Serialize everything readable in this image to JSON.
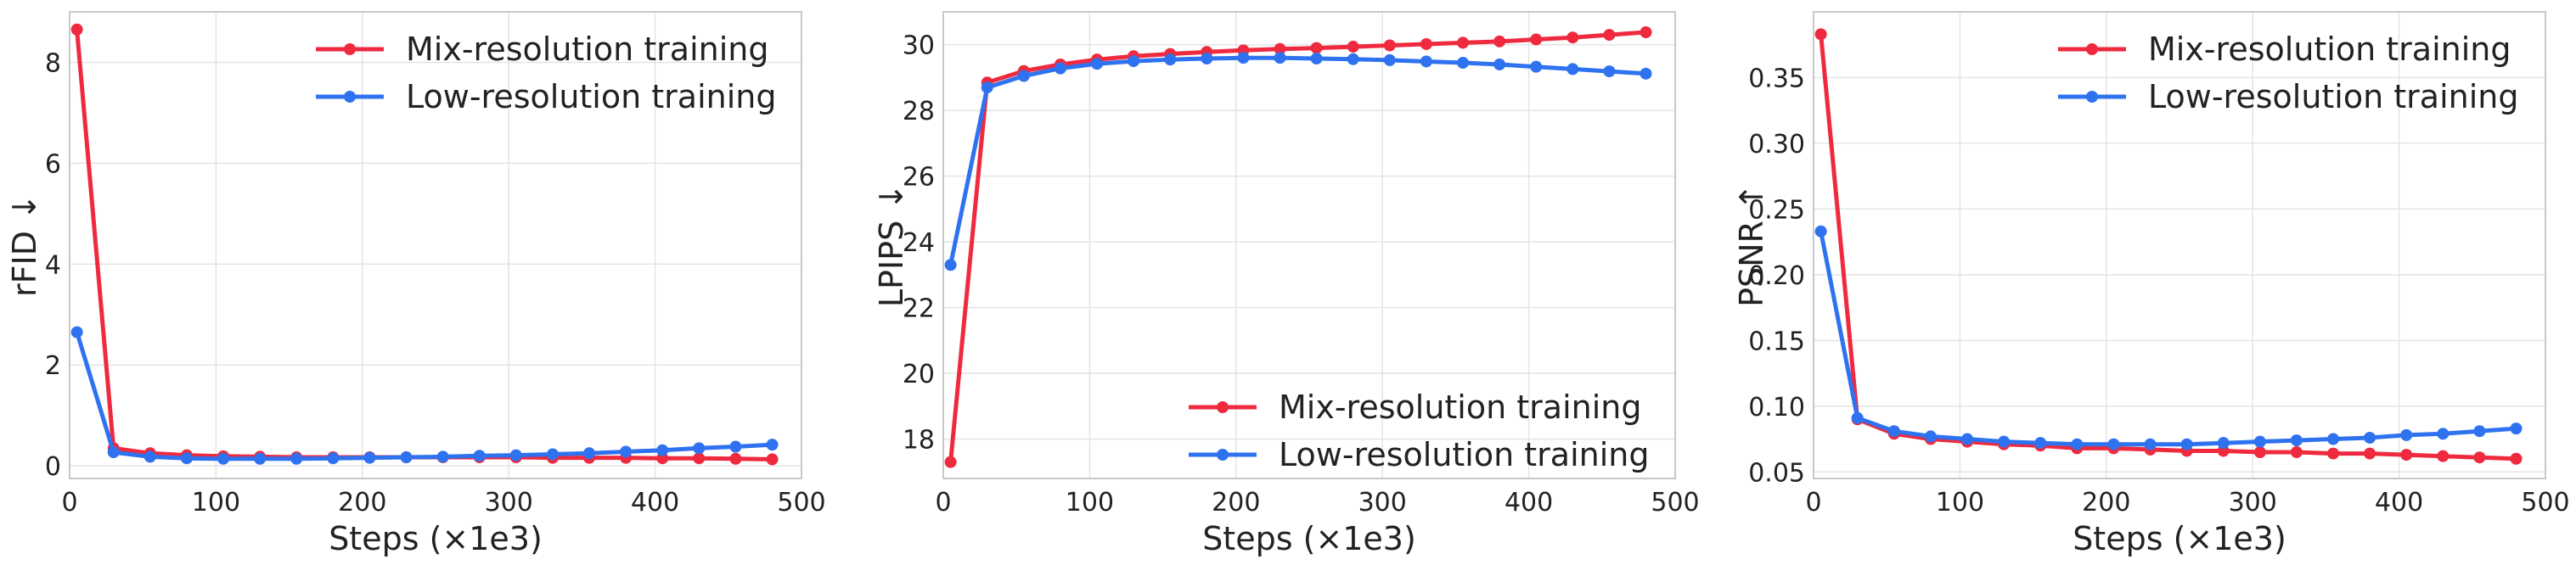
{
  "chart_data": [
    {
      "type": "line",
      "ylabel": "rFID ↓",
      "xlabel": "Steps (×1e3)",
      "xlim": [
        0,
        500
      ],
      "ylim": [
        -0.25,
        9.0
      ],
      "xticks": [
        0,
        100,
        200,
        300,
        400,
        500
      ],
      "yticks": [
        0,
        2,
        4,
        6,
        8
      ],
      "yticklabels": [
        "0",
        "2",
        "4",
        "6",
        "8"
      ],
      "grid": true,
      "legend_position": "top-right",
      "x": [
        5,
        30,
        55,
        80,
        105,
        130,
        155,
        180,
        205,
        230,
        255,
        280,
        305,
        330,
        355,
        380,
        405,
        430,
        455,
        480
      ],
      "series": [
        {
          "name": "Mix-resolution training",
          "color": "#ef2a3f",
          "values": [
            8.65,
            0.35,
            0.25,
            0.21,
            0.19,
            0.18,
            0.17,
            0.17,
            0.17,
            0.17,
            0.17,
            0.17,
            0.17,
            0.16,
            0.16,
            0.16,
            0.15,
            0.15,
            0.14,
            0.13
          ]
        },
        {
          "name": "Low-resolution training",
          "color": "#2f72f0",
          "values": [
            2.65,
            0.27,
            0.18,
            0.15,
            0.14,
            0.14,
            0.14,
            0.15,
            0.16,
            0.17,
            0.18,
            0.2,
            0.21,
            0.23,
            0.25,
            0.28,
            0.31,
            0.35,
            0.38,
            0.42
          ]
        }
      ]
    },
    {
      "type": "line",
      "ylabel": "LPIPS ↓",
      "xlabel": "Steps (×1e3)",
      "xlim": [
        0,
        500
      ],
      "ylim": [
        16.8,
        31.0
      ],
      "xticks": [
        0,
        100,
        200,
        300,
        400,
        500
      ],
      "yticks": [
        18,
        20,
        22,
        24,
        26,
        28,
        30
      ],
      "yticklabels": [
        "18",
        "20",
        "22",
        "24",
        "26",
        "28",
        "30"
      ],
      "grid": true,
      "legend_position": "bottom-right",
      "x": [
        5,
        30,
        55,
        80,
        105,
        130,
        155,
        180,
        205,
        230,
        255,
        280,
        305,
        330,
        355,
        380,
        405,
        430,
        455,
        480
      ],
      "series": [
        {
          "name": "Mix-resolution training",
          "color": "#ef2a3f",
          "values": [
            17.3,
            28.85,
            29.2,
            29.4,
            29.55,
            29.65,
            29.72,
            29.78,
            29.83,
            29.87,
            29.9,
            29.94,
            29.98,
            30.02,
            30.06,
            30.1,
            30.16,
            30.22,
            30.3,
            30.38
          ]
        },
        {
          "name": "Low-resolution training",
          "color": "#2f72f0",
          "values": [
            23.3,
            28.7,
            29.05,
            29.28,
            29.42,
            29.5,
            29.55,
            29.58,
            29.6,
            29.6,
            29.58,
            29.56,
            29.53,
            29.49,
            29.45,
            29.4,
            29.33,
            29.26,
            29.19,
            29.12
          ]
        }
      ]
    },
    {
      "type": "line",
      "ylabel": "PSNR ↑",
      "xlabel": "Steps (×1e3)",
      "xlim": [
        0,
        500
      ],
      "ylim": [
        0.045,
        0.4
      ],
      "xticks": [
        0,
        100,
        200,
        300,
        400,
        500
      ],
      "yticks": [
        0.05,
        0.1,
        0.15,
        0.2,
        0.25,
        0.3,
        0.35
      ],
      "yticklabels": [
        "0.05",
        "0.10",
        "0.15",
        "0.20",
        "0.25",
        "0.30",
        "0.35"
      ],
      "grid": true,
      "legend_position": "top-right",
      "x": [
        5,
        30,
        55,
        80,
        105,
        130,
        155,
        180,
        205,
        230,
        255,
        280,
        305,
        330,
        355,
        380,
        405,
        430,
        455,
        480
      ],
      "series": [
        {
          "name": "Mix-resolution training",
          "color": "#ef2a3f",
          "values": [
            0.383,
            0.09,
            0.079,
            0.075,
            0.073,
            0.071,
            0.07,
            0.068,
            0.068,
            0.067,
            0.066,
            0.066,
            0.065,
            0.065,
            0.064,
            0.064,
            0.063,
            0.062,
            0.061,
            0.06
          ]
        },
        {
          "name": "Low-resolution training",
          "color": "#2f72f0",
          "values": [
            0.233,
            0.091,
            0.081,
            0.077,
            0.075,
            0.073,
            0.072,
            0.071,
            0.071,
            0.071,
            0.071,
            0.072,
            0.073,
            0.074,
            0.075,
            0.076,
            0.078,
            0.079,
            0.081,
            0.083
          ]
        }
      ]
    }
  ]
}
